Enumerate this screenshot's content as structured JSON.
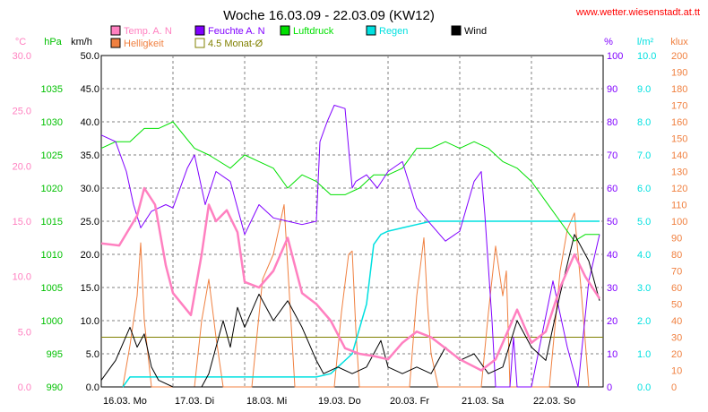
{
  "chart_data": {
    "type": "line",
    "title": "Woche 16.03.09 - 22.03.09 (KW12)",
    "source_url": "www.wetter.wiesenstadt.at.tt",
    "days": [
      "16.03.  Mo",
      "17.03.  Di",
      "18.03.  Mi",
      "19.03.  Do",
      "20.03.  Fr",
      "21.03.  Sa",
      "22.03.  So"
    ],
    "legend": [
      {
        "label": "Temp. A. N",
        "color": "#ff80c0"
      },
      {
        "label": "Feuchte A. N",
        "color": "#8000ff"
      },
      {
        "label": "Luftdruck",
        "color": "#00e000"
      },
      {
        "label": "Regen",
        "color": "#00e0e0"
      },
      {
        "label": "Wind",
        "color": "#000000"
      },
      {
        "label": "Helligkeit",
        "color": "#f08040"
      },
      {
        "label": "4.5 Monat-Ø",
        "color": "#808000"
      }
    ],
    "axes": {
      "temp": {
        "unit": "°C",
        "ticks": [
          "0.0",
          "5.0",
          "10.0",
          "15.0",
          "20.0",
          "25.0",
          "30.0"
        ],
        "range": [
          0,
          30
        ],
        "color": "#ff80c0"
      },
      "pressure": {
        "unit": "hPa",
        "ticks": [
          "990",
          "995",
          "1000",
          "1005",
          "1010",
          "1015",
          "1020",
          "1025",
          "1030",
          "1035"
        ],
        "range": [
          990,
          1040
        ],
        "color": "#00c000"
      },
      "wind": {
        "unit": "km/h",
        "ticks": [
          "0.0",
          "5.0",
          "10.0",
          "15.0",
          "20.0",
          "25.0",
          "30.0",
          "35.0",
          "40.0",
          "45.0",
          "50.0"
        ],
        "range": [
          0,
          50
        ],
        "color": "#000000"
      },
      "humidity": {
        "unit": "%",
        "ticks": [
          "0",
          "10",
          "20",
          "30",
          "40",
          "50",
          "60",
          "70",
          "80",
          "90",
          "100"
        ],
        "range": [
          0,
          100
        ],
        "color": "#8000ff"
      },
      "rain": {
        "unit": "l/m²",
        "ticks": [
          "0.0",
          "1.0",
          "2.0",
          "3.0",
          "4.0",
          "5.0",
          "6.0",
          "7.0",
          "8.0",
          "9.0",
          "10.0"
        ],
        "range": [
          0,
          10
        ],
        "color": "#00e0e0"
      },
      "lux": {
        "unit": "klux",
        "ticks": [
          "0",
          "10",
          "20",
          "30",
          "40",
          "50",
          "60",
          "70",
          "80",
          "90",
          "100",
          "110",
          "120",
          "130",
          "140",
          "150",
          "160",
          "170",
          "180",
          "190",
          "200"
        ],
        "range": [
          0,
          200
        ],
        "color": "#f08040"
      }
    },
    "avg_line_wind_kmh": 7.5,
    "series": {
      "temp_x_day": [
        0,
        0.25,
        0.5,
        0.6,
        0.75,
        0.9,
        1.0,
        1.25,
        1.4,
        1.5,
        1.6,
        1.75,
        1.9,
        2.0,
        2.2,
        2.4,
        2.6,
        2.8,
        3.0,
        3.2,
        3.4,
        3.6,
        3.8,
        4.0,
        4.2,
        4.4,
        4.6,
        4.8,
        5.0,
        5.3,
        5.5,
        5.7,
        5.8,
        6.0,
        6.2,
        6.4,
        6.6,
        6.75,
        6.9,
        6.95
      ],
      "temp_y": [
        13.0,
        12.8,
        15.5,
        18.0,
        16.5,
        11.0,
        8.5,
        6.5,
        12.0,
        16.5,
        15.0,
        16.0,
        14.0,
        9.5,
        9.0,
        10.5,
        13.5,
        8.5,
        7.5,
        6.0,
        3.5,
        3.0,
        2.8,
        2.5,
        4.0,
        5.0,
        4.5,
        3.5,
        2.5,
        1.5,
        2.5,
        5.5,
        7.0,
        4.0,
        5.0,
        9.0,
        12.0,
        10.0,
        8.5,
        8.0
      ],
      "hum_x_day": [
        0,
        0.2,
        0.35,
        0.45,
        0.55,
        0.7,
        0.9,
        1.0,
        1.2,
        1.3,
        1.45,
        1.6,
        1.8,
        2.0,
        2.2,
        2.4,
        2.6,
        2.8,
        3.0,
        3.05,
        3.15,
        3.25,
        3.4,
        3.5,
        3.55,
        3.7,
        3.85,
        4.0,
        4.2,
        4.4,
        4.6,
        4.8,
        5.0,
        5.2,
        5.3,
        5.35,
        5.45,
        5.5,
        5.7,
        5.75,
        5.8,
        6.0,
        6.3,
        6.5,
        6.65,
        6.8,
        6.95
      ],
      "hum_y": [
        76,
        74,
        65,
        55,
        48,
        53,
        55,
        54,
        66,
        70,
        55,
        65,
        62,
        46,
        55,
        51,
        50,
        49,
        50,
        74,
        80,
        85,
        84,
        60,
        62,
        64,
        60,
        65,
        68,
        54,
        49,
        44,
        47,
        62,
        65,
        52,
        20,
        0,
        0,
        15,
        0,
        0,
        32,
        12,
        0,
        32,
        46
      ],
      "pres_x_day": [
        0,
        0.2,
        0.4,
        0.6,
        0.8,
        1.0,
        1.3,
        1.5,
        1.8,
        2.0,
        2.2,
        2.4,
        2.6,
        2.8,
        3.0,
        3.2,
        3.4,
        3.6,
        3.8,
        4.0,
        4.2,
        4.4,
        4.6,
        4.8,
        5.0,
        5.2,
        5.4,
        5.6,
        5.8,
        6.0,
        6.2,
        6.4,
        6.6,
        6.75,
        6.95
      ],
      "pres_y": [
        1026,
        1027,
        1027,
        1029,
        1029,
        1030,
        1026,
        1025,
        1023,
        1025,
        1024,
        1023,
        1020,
        1022,
        1021,
        1019,
        1019,
        1020,
        1022,
        1022,
        1023,
        1026,
        1026,
        1027,
        1026,
        1027,
        1026,
        1024,
        1023,
        1021,
        1018,
        1015,
        1012,
        1013,
        1013
      ],
      "rain_x_day": [
        0.3,
        0.4,
        1.0,
        2.0,
        3.0,
        3.2,
        3.5,
        3.7,
        3.8,
        3.9,
        4.0,
        4.2,
        4.4,
        4.6,
        4.8,
        5.0,
        5.2,
        5.4,
        5.6,
        5.8,
        6.0,
        6.2,
        6.4,
        6.6,
        6.8,
        6.95
      ],
      "rain_y": [
        0,
        0.3,
        0.3,
        0.3,
        0.3,
        0.4,
        1.0,
        2.5,
        4.3,
        4.6,
        4.7,
        4.8,
        4.9,
        5.0,
        5.0,
        5.0,
        5.0,
        5.0,
        5.0,
        5.0,
        5.0,
        5.0,
        5.0,
        5.0,
        5.0,
        5.0
      ],
      "wind_x_day": [
        0,
        0.2,
        0.4,
        0.5,
        0.6,
        0.7,
        0.8,
        1.0,
        1.2,
        1.4,
        1.5,
        1.6,
        1.7,
        1.8,
        1.9,
        2.0,
        2.2,
        2.4,
        2.6,
        2.8,
        3.0,
        3.1,
        3.3,
        3.5,
        3.7,
        3.9,
        4.0,
        4.2,
        4.4,
        4.6,
        4.8,
        5.0,
        5.2,
        5.4,
        5.6,
        5.8,
        6.0,
        6.2,
        6.4,
        6.6,
        6.8,
        6.95
      ],
      "wind_y": [
        1,
        4,
        9,
        6,
        8,
        3,
        1,
        0,
        0,
        0,
        2,
        6,
        10,
        6,
        12,
        9,
        14,
        10,
        13,
        9,
        4,
        2,
        3,
        2,
        3,
        7,
        3,
        2,
        3,
        2,
        6,
        4,
        5,
        2,
        3,
        10,
        6,
        4,
        14,
        23,
        19,
        13
      ],
      "lux_x_day": [
        0.3,
        0.4,
        0.5,
        0.55,
        0.6,
        0.7,
        1.3,
        1.4,
        1.5,
        1.6,
        1.7,
        2.1,
        2.25,
        2.4,
        2.55,
        2.7,
        3.25,
        3.35,
        3.45,
        3.5,
        3.55,
        3.6,
        3.7,
        4.3,
        4.4,
        4.5,
        4.55,
        4.6,
        4.7,
        5.3,
        5.4,
        5.5,
        5.6,
        5.65,
        5.7,
        5.8,
        6.25,
        6.4,
        6.5,
        6.6,
        6.7,
        6.8
      ],
      "lux_y": [
        0,
        25,
        55,
        87,
        40,
        0,
        0,
        40,
        65,
        30,
        0,
        0,
        65,
        80,
        110,
        0,
        0,
        45,
        80,
        82,
        35,
        0,
        0,
        0,
        55,
        90,
        50,
        20,
        0,
        0,
        45,
        85,
        55,
        70,
        0,
        0,
        0,
        70,
        95,
        105,
        55,
        0
      ]
    }
  }
}
